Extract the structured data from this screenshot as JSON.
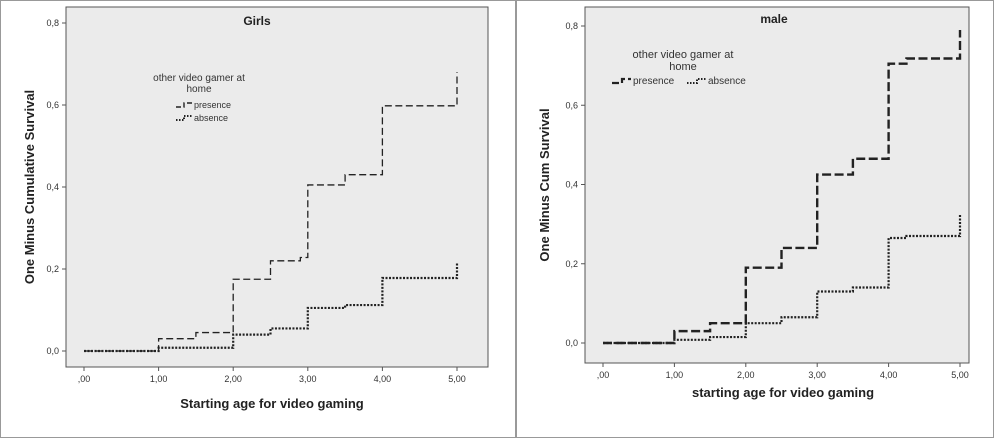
{
  "chart_data": [
    {
      "type": "line",
      "title": "Girls",
      "xlabel": "Starting age for video gaming",
      "ylabel": "One Minus Cumulative Survival",
      "xlim": [
        -0.05,
        5.15
      ],
      "ylim": [
        -0.02,
        0.82
      ],
      "xticks": [
        0,
        1,
        2,
        3,
        4,
        5
      ],
      "xtick_labels": [
        ",00",
        "1,00",
        "2,00",
        "3,00",
        "4,00",
        "5,00"
      ],
      "yticks": [
        0,
        0.2,
        0.4,
        0.6,
        0.8
      ],
      "ytick_labels": [
        "0,0",
        "0,2",
        "0,4",
        "0,6",
        "0,8"
      ],
      "legend_title": "other video gamer at home",
      "step": true,
      "series": [
        {
          "name": "presence",
          "x": [
            0,
            0.7,
            1.0,
            1.5,
            2.0,
            2.5,
            2.9,
            3.0,
            3.5,
            4.0,
            5.0,
            5.0
          ],
          "y": [
            0,
            0,
            0.03,
            0.045,
            0.175,
            0.22,
            0.228,
            0.405,
            0.43,
            0.598,
            0.61,
            0.68
          ],
          "color": "#222222"
        },
        {
          "name": "absence",
          "x": [
            0,
            0.8,
            1.0,
            2.0,
            2.5,
            3.0,
            3.5,
            4.0,
            5.0,
            5.0
          ],
          "y": [
            0,
            0,
            0.008,
            0.04,
            0.055,
            0.105,
            0.112,
            0.178,
            0.183,
            0.215
          ],
          "color": "#222222"
        }
      ]
    },
    {
      "type": "line",
      "title": "male",
      "xlabel": "starting age for video gaming",
      "ylabel": "One Minus Cum Survival",
      "xlim": [
        -0.05,
        5.15
      ],
      "ylim": [
        -0.02,
        0.82
      ],
      "xticks": [
        0,
        1,
        2,
        3,
        4,
        5
      ],
      "xtick_labels": [
        ",00",
        "1,00",
        "2,00",
        "3,00",
        "4,00",
        "5,00"
      ],
      "yticks": [
        0,
        0.2,
        0.4,
        0.6,
        0.8
      ],
      "ytick_labels": [
        "0,0",
        "0,2",
        "0,4",
        "0,6",
        "0,8"
      ],
      "legend_title": "other video gamer at home",
      "step": true,
      "series": [
        {
          "name": "presence",
          "x": [
            0,
            1.0,
            1.5,
            2.0,
            2.5,
            3.0,
            3.5,
            4.0,
            4.25,
            5.0,
            5.0
          ],
          "y": [
            0,
            0.03,
            0.05,
            0.19,
            0.24,
            0.425,
            0.465,
            0.705,
            0.718,
            0.72,
            0.79
          ],
          "color": "#222222"
        },
        {
          "name": "absence",
          "x": [
            0,
            1.0,
            1.5,
            2.0,
            2.5,
            3.0,
            3.5,
            4.0,
            4.25,
            5.0,
            5.0
          ],
          "y": [
            0,
            0.008,
            0.015,
            0.05,
            0.065,
            0.13,
            0.14,
            0.265,
            0.27,
            0.275,
            0.325
          ],
          "color": "#222222"
        }
      ]
    }
  ]
}
